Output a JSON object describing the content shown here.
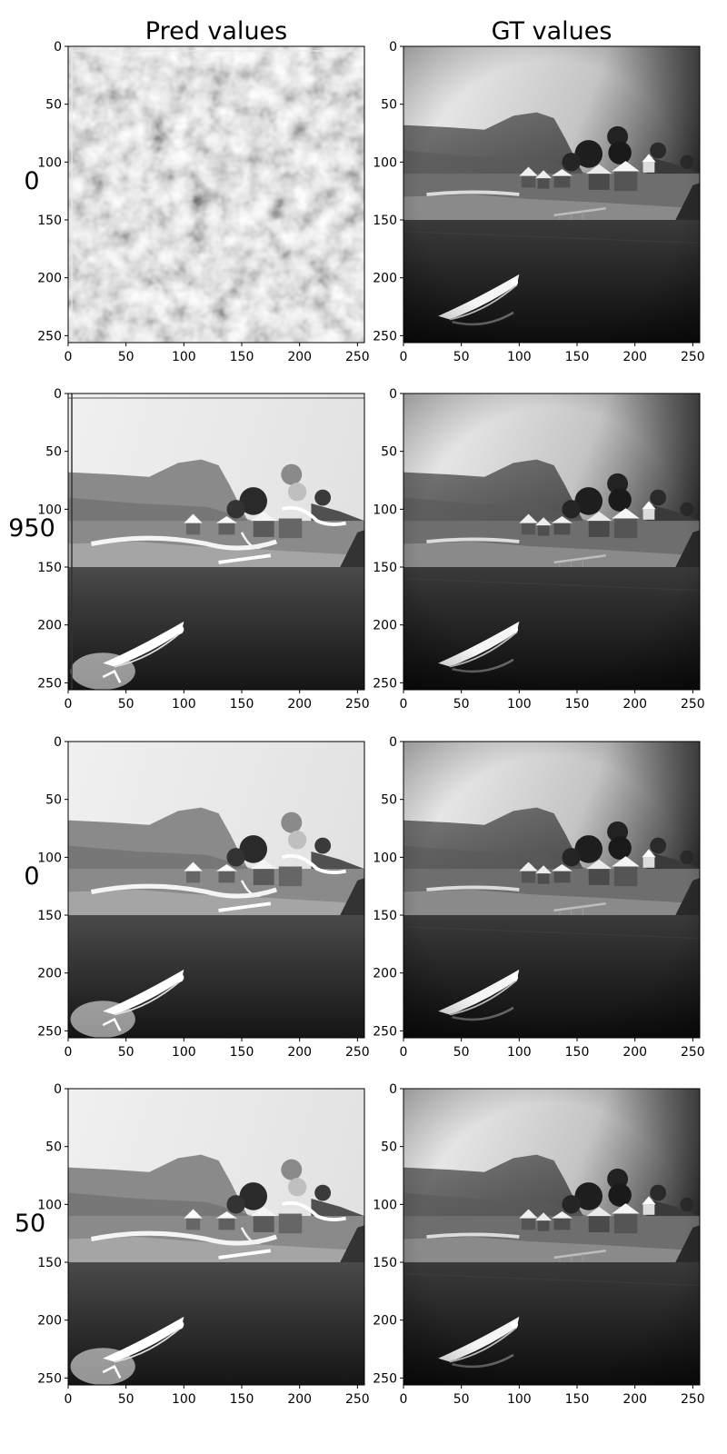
{
  "figure": {
    "column_titles": [
      "Pred values",
      "GT values"
    ],
    "row_labels": [
      "0",
      "950",
      "0",
      "50"
    ]
  },
  "chart_data": {
    "type": "image-grid",
    "rows": 4,
    "columns": 2,
    "panels_per_row": [
      "Pred values",
      "GT values"
    ],
    "xlim": [
      0,
      256
    ],
    "ylim": [
      256,
      0
    ],
    "xticks": [
      "0",
      "50",
      "100",
      "150",
      "200",
      "250"
    ],
    "yticks": [
      "0",
      "50",
      "100",
      "150",
      "200",
      "250"
    ],
    "cmap": "gray",
    "panels": [
      {
        "row": 0,
        "col": 0,
        "content": "pred-noise"
      },
      {
        "row": 0,
        "col": 1,
        "content": "gt-scene"
      },
      {
        "row": 1,
        "col": 0,
        "content": "pred-scene"
      },
      {
        "row": 1,
        "col": 1,
        "content": "gt-scene"
      },
      {
        "row": 2,
        "col": 0,
        "content": "pred-scene"
      },
      {
        "row": 2,
        "col": 1,
        "content": "gt-scene"
      },
      {
        "row": 3,
        "col": 0,
        "content": "pred-scene"
      },
      {
        "row": 3,
        "col": 1,
        "content": "gt-scene"
      }
    ]
  }
}
